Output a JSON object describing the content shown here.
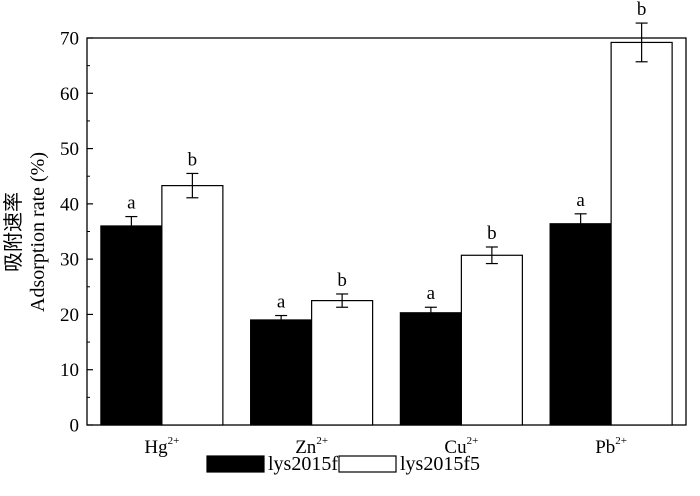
{
  "chart_data": {
    "type": "bar",
    "categories": [
      {
        "base": "Hg",
        "sup": "2+"
      },
      {
        "base": "Zn",
        "sup": "2+"
      },
      {
        "base": "Cu",
        "sup": "2+"
      },
      {
        "base": "Pb",
        "sup": "2+"
      }
    ],
    "series": [
      {
        "name": "lys2015f1",
        "color": "#000000",
        "values": [
          36,
          19,
          20.3,
          36.4
        ],
        "errors": [
          1.7,
          0.8,
          1.0,
          1.8
        ],
        "significance": [
          "a",
          "a",
          "a",
          "a"
        ]
      },
      {
        "name": "lys2015f5",
        "color": "#ffffff",
        "values": [
          43.3,
          22.5,
          30.7,
          69.2
        ],
        "errors": [
          2.2,
          1.2,
          1.5,
          3.5
        ],
        "significance": [
          "b",
          "b",
          "b",
          "b"
        ]
      }
    ],
    "ylabel_cn": "吸附速率",
    "ylabel": "Adsorption rate (%)",
    "ylim": [
      0,
      70
    ],
    "yticks": [
      0,
      10,
      20,
      30,
      40,
      50,
      60,
      70
    ],
    "grid": false,
    "legend_position": "bottom-center"
  }
}
